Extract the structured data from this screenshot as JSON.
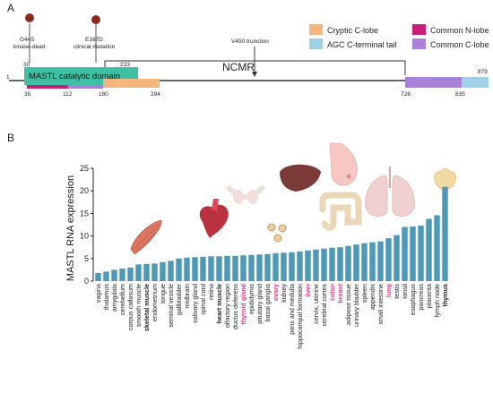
{
  "panel_a": {
    "label": "A",
    "seq_start": "1",
    "seq_end": "879",
    "domain_label": "MASTL catalytic domain",
    "ncmr_label": "NCMR",
    "positions": {
      "p30": "30",
      "p233": "233",
      "p35": "35",
      "p112": "112",
      "p180": "180",
      "p294": "294",
      "p728": "728",
      "p835": "835"
    },
    "mutations": [
      {
        "name": "G44S",
        "desc": "kinase-dead",
        "color": "#8b2a1c"
      },
      {
        "name": "E167D",
        "desc": "clinical mutation",
        "color": "#8b2a1c"
      }
    ],
    "truncation_label": "V450 trunction",
    "legend": [
      {
        "label": "Cryptic C-lobe",
        "color": "#f5b57d"
      },
      {
        "label": "AGC C-terminal tail",
        "color": "#9fd0e6"
      },
      {
        "label": "Common N-lobe",
        "color": "#c81e78"
      },
      {
        "label": "Common C-lobe",
        "color": "#a981d9"
      }
    ],
    "colors": {
      "catalytic": "#3fbfa4",
      "cryptic": "#f5b57d",
      "agc": "#9fd0e6",
      "n_lobe": "#c81e78",
      "c_lobe": "#a981d9"
    }
  },
  "panel_b": {
    "label": "B"
  },
  "chart_data": {
    "type": "bar",
    "ylabel": "MASTL RNA expression",
    "ylim": [
      0,
      25
    ],
    "yticks": [
      0,
      5,
      10,
      15,
      20,
      25
    ],
    "bar_color": "#4f99b6",
    "highlight_color": "#d4438a",
    "categories": [
      {
        "name": "vagina",
        "value": 1.8,
        "style": "normal"
      },
      {
        "name": "thalamus",
        "value": 2.1,
        "style": "normal"
      },
      {
        "name": "amygdala",
        "value": 2.5,
        "style": "normal"
      },
      {
        "name": "cerebellum",
        "value": 2.8,
        "style": "normal"
      },
      {
        "name": "corpus callosum",
        "value": 3.0,
        "style": "normal"
      },
      {
        "name": "smooth muscle",
        "value": 3.7,
        "style": "normal"
      },
      {
        "name": "skeletal muscle",
        "value": 3.8,
        "style": "bold"
      },
      {
        "name": "endometrium",
        "value": 3.9,
        "style": "normal"
      },
      {
        "name": "tongue",
        "value": 4.2,
        "style": "normal"
      },
      {
        "name": "seminal vesicle",
        "value": 4.5,
        "style": "normal"
      },
      {
        "name": "gallbladder",
        "value": 5.0,
        "style": "normal"
      },
      {
        "name": "midbrain",
        "value": 5.2,
        "style": "normal"
      },
      {
        "name": "salivary gland",
        "value": 5.3,
        "style": "normal"
      },
      {
        "name": "spinal cord",
        "value": 5.4,
        "style": "normal"
      },
      {
        "name": "retina",
        "value": 5.5,
        "style": "normal"
      },
      {
        "name": "heart muscle",
        "value": 5.5,
        "style": "bold"
      },
      {
        "name": "olfactory region",
        "value": 5.6,
        "style": "normal"
      },
      {
        "name": "ductus deferens",
        "value": 5.6,
        "style": "normal"
      },
      {
        "name": "thyroid gland",
        "value": 5.7,
        "style": "highlight"
      },
      {
        "name": "epididymis",
        "value": 5.8,
        "style": "normal"
      },
      {
        "name": "pituitary gland",
        "value": 5.9,
        "style": "normal"
      },
      {
        "name": "basal ganglia",
        "value": 6.0,
        "style": "normal"
      },
      {
        "name": "ovary",
        "value": 6.2,
        "style": "highlight"
      },
      {
        "name": "kidney",
        "value": 6.3,
        "style": "normal"
      },
      {
        "name": "pons and medulla",
        "value": 6.4,
        "style": "normal"
      },
      {
        "name": "hippocampal formation",
        "value": 6.6,
        "style": "normal"
      },
      {
        "name": "liver",
        "value": 6.8,
        "style": "highlight"
      },
      {
        "name": "cervix, uterine",
        "value": 7.0,
        "style": "normal"
      },
      {
        "name": "cerebral cortex",
        "value": 7.2,
        "style": "normal"
      },
      {
        "name": "colon",
        "value": 7.4,
        "style": "highlight"
      },
      {
        "name": "breast",
        "value": 7.5,
        "style": "highlight"
      },
      {
        "name": "adipose tissue",
        "value": 7.8,
        "style": "normal"
      },
      {
        "name": "urinary bladder",
        "value": 8.1,
        "style": "normal"
      },
      {
        "name": "spleen",
        "value": 8.4,
        "style": "normal"
      },
      {
        "name": "appendix",
        "value": 8.6,
        "style": "normal"
      },
      {
        "name": "small intestine",
        "value": 8.8,
        "style": "normal"
      },
      {
        "name": "lung",
        "value": 9.5,
        "style": "highlight"
      },
      {
        "name": "testis",
        "value": 10.2,
        "style": "normal"
      },
      {
        "name": "tonsil",
        "value": 12.0,
        "style": "normal"
      },
      {
        "name": "esophagus",
        "value": 12.1,
        "style": "normal"
      },
      {
        "name": "pancreas",
        "value": 12.3,
        "style": "normal"
      },
      {
        "name": "placenta",
        "value": 13.8,
        "style": "normal"
      },
      {
        "name": "lymph node",
        "value": 14.6,
        "style": "normal"
      },
      {
        "name": "thymus",
        "value": 20.9,
        "style": "bold"
      }
    ]
  },
  "illustrations": [
    "muscle-icon",
    "heart-icon",
    "thyroid-icon",
    "ovary-icon",
    "liver-icon",
    "colon-icon",
    "breast-icon",
    "lung-icon",
    "thymus-icon"
  ]
}
